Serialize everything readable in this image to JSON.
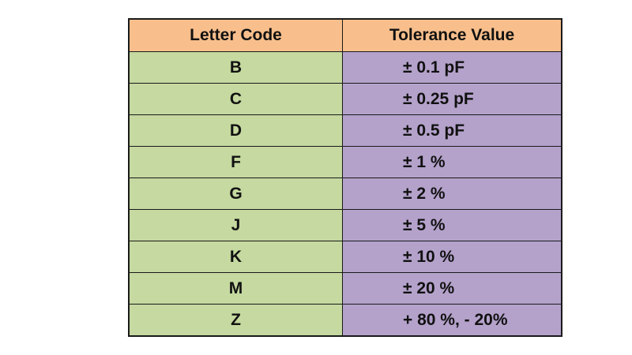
{
  "table": {
    "headers": {
      "code": "Letter Code",
      "tolerance": "Tolerance Value"
    },
    "rows": [
      {
        "code": "B",
        "tolerance": "± 0.1 pF"
      },
      {
        "code": "C",
        "tolerance": "± 0.25 pF"
      },
      {
        "code": "D",
        "tolerance": "± 0.5 pF"
      },
      {
        "code": "F",
        "tolerance": "± 1 %"
      },
      {
        "code": "G",
        "tolerance": "± 2 %"
      },
      {
        "code": "J",
        "tolerance": "± 5 %"
      },
      {
        "code": "K",
        "tolerance": "± 10 %"
      },
      {
        "code": "M",
        "tolerance": "± 20 %"
      },
      {
        "code": "Z",
        "tolerance": "+ 80 %, - 20%"
      }
    ]
  },
  "colors": {
    "header_bg": "#f8bf8c",
    "code_bg": "#c5d9a0",
    "tolerance_bg": "#b4a2cb",
    "border": "#1a1a1a"
  }
}
